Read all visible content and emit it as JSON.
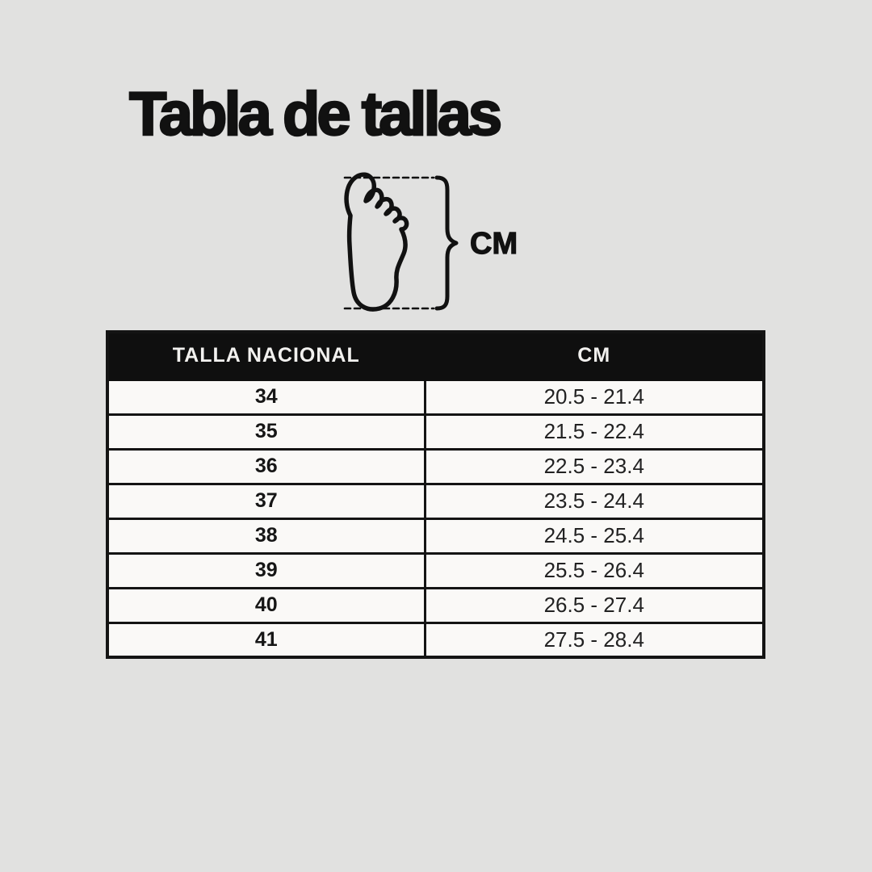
{
  "page": {
    "title": "Tabla de tallas",
    "background_color": "#e1e1e0",
    "ink_color": "#111111"
  },
  "figure": {
    "unit_label": "CM",
    "icons": {
      "foot": "foot-outline-icon",
      "brace": "curly-brace-icon",
      "top_line": "measure-dash-line-top",
      "bottom_line": "measure-dash-line-bottom"
    }
  },
  "table": {
    "headers": [
      "TALLA NACIONAL",
      "CM"
    ],
    "rows": [
      [
        "34",
        "20.5 - 21.4"
      ],
      [
        "35",
        "21.5 - 22.4"
      ],
      [
        "36",
        "22.5 - 23.4"
      ],
      [
        "37",
        "23.5 - 24.4"
      ],
      [
        "38",
        "24.5 - 25.4"
      ],
      [
        "39",
        "25.5 - 26.4"
      ],
      [
        "40",
        "26.5 - 27.4"
      ],
      [
        "41",
        "27.5 - 28.4"
      ]
    ],
    "header_bg": "#0f0f0f",
    "header_text_color": "#f2f1ef",
    "row_bg": "#faf9f7",
    "border_color": "#141414"
  },
  "chart_data": {
    "type": "table",
    "title": "Tabla de tallas",
    "columns": [
      "TALLA NACIONAL",
      "CM"
    ],
    "rows": [
      [
        "34",
        "20.5 - 21.4"
      ],
      [
        "35",
        "21.5 - 22.4"
      ],
      [
        "36",
        "22.5 - 23.4"
      ],
      [
        "37",
        "23.5 - 24.4"
      ],
      [
        "38",
        "24.5 - 25.4"
      ],
      [
        "39",
        "25.5 - 26.4"
      ],
      [
        "40",
        "26.5 - 27.4"
      ],
      [
        "41",
        "27.5 - 28.4"
      ]
    ],
    "unit_annotation": "CM",
    "notes": "Foot length measured in centimeters between dashed lines"
  }
}
